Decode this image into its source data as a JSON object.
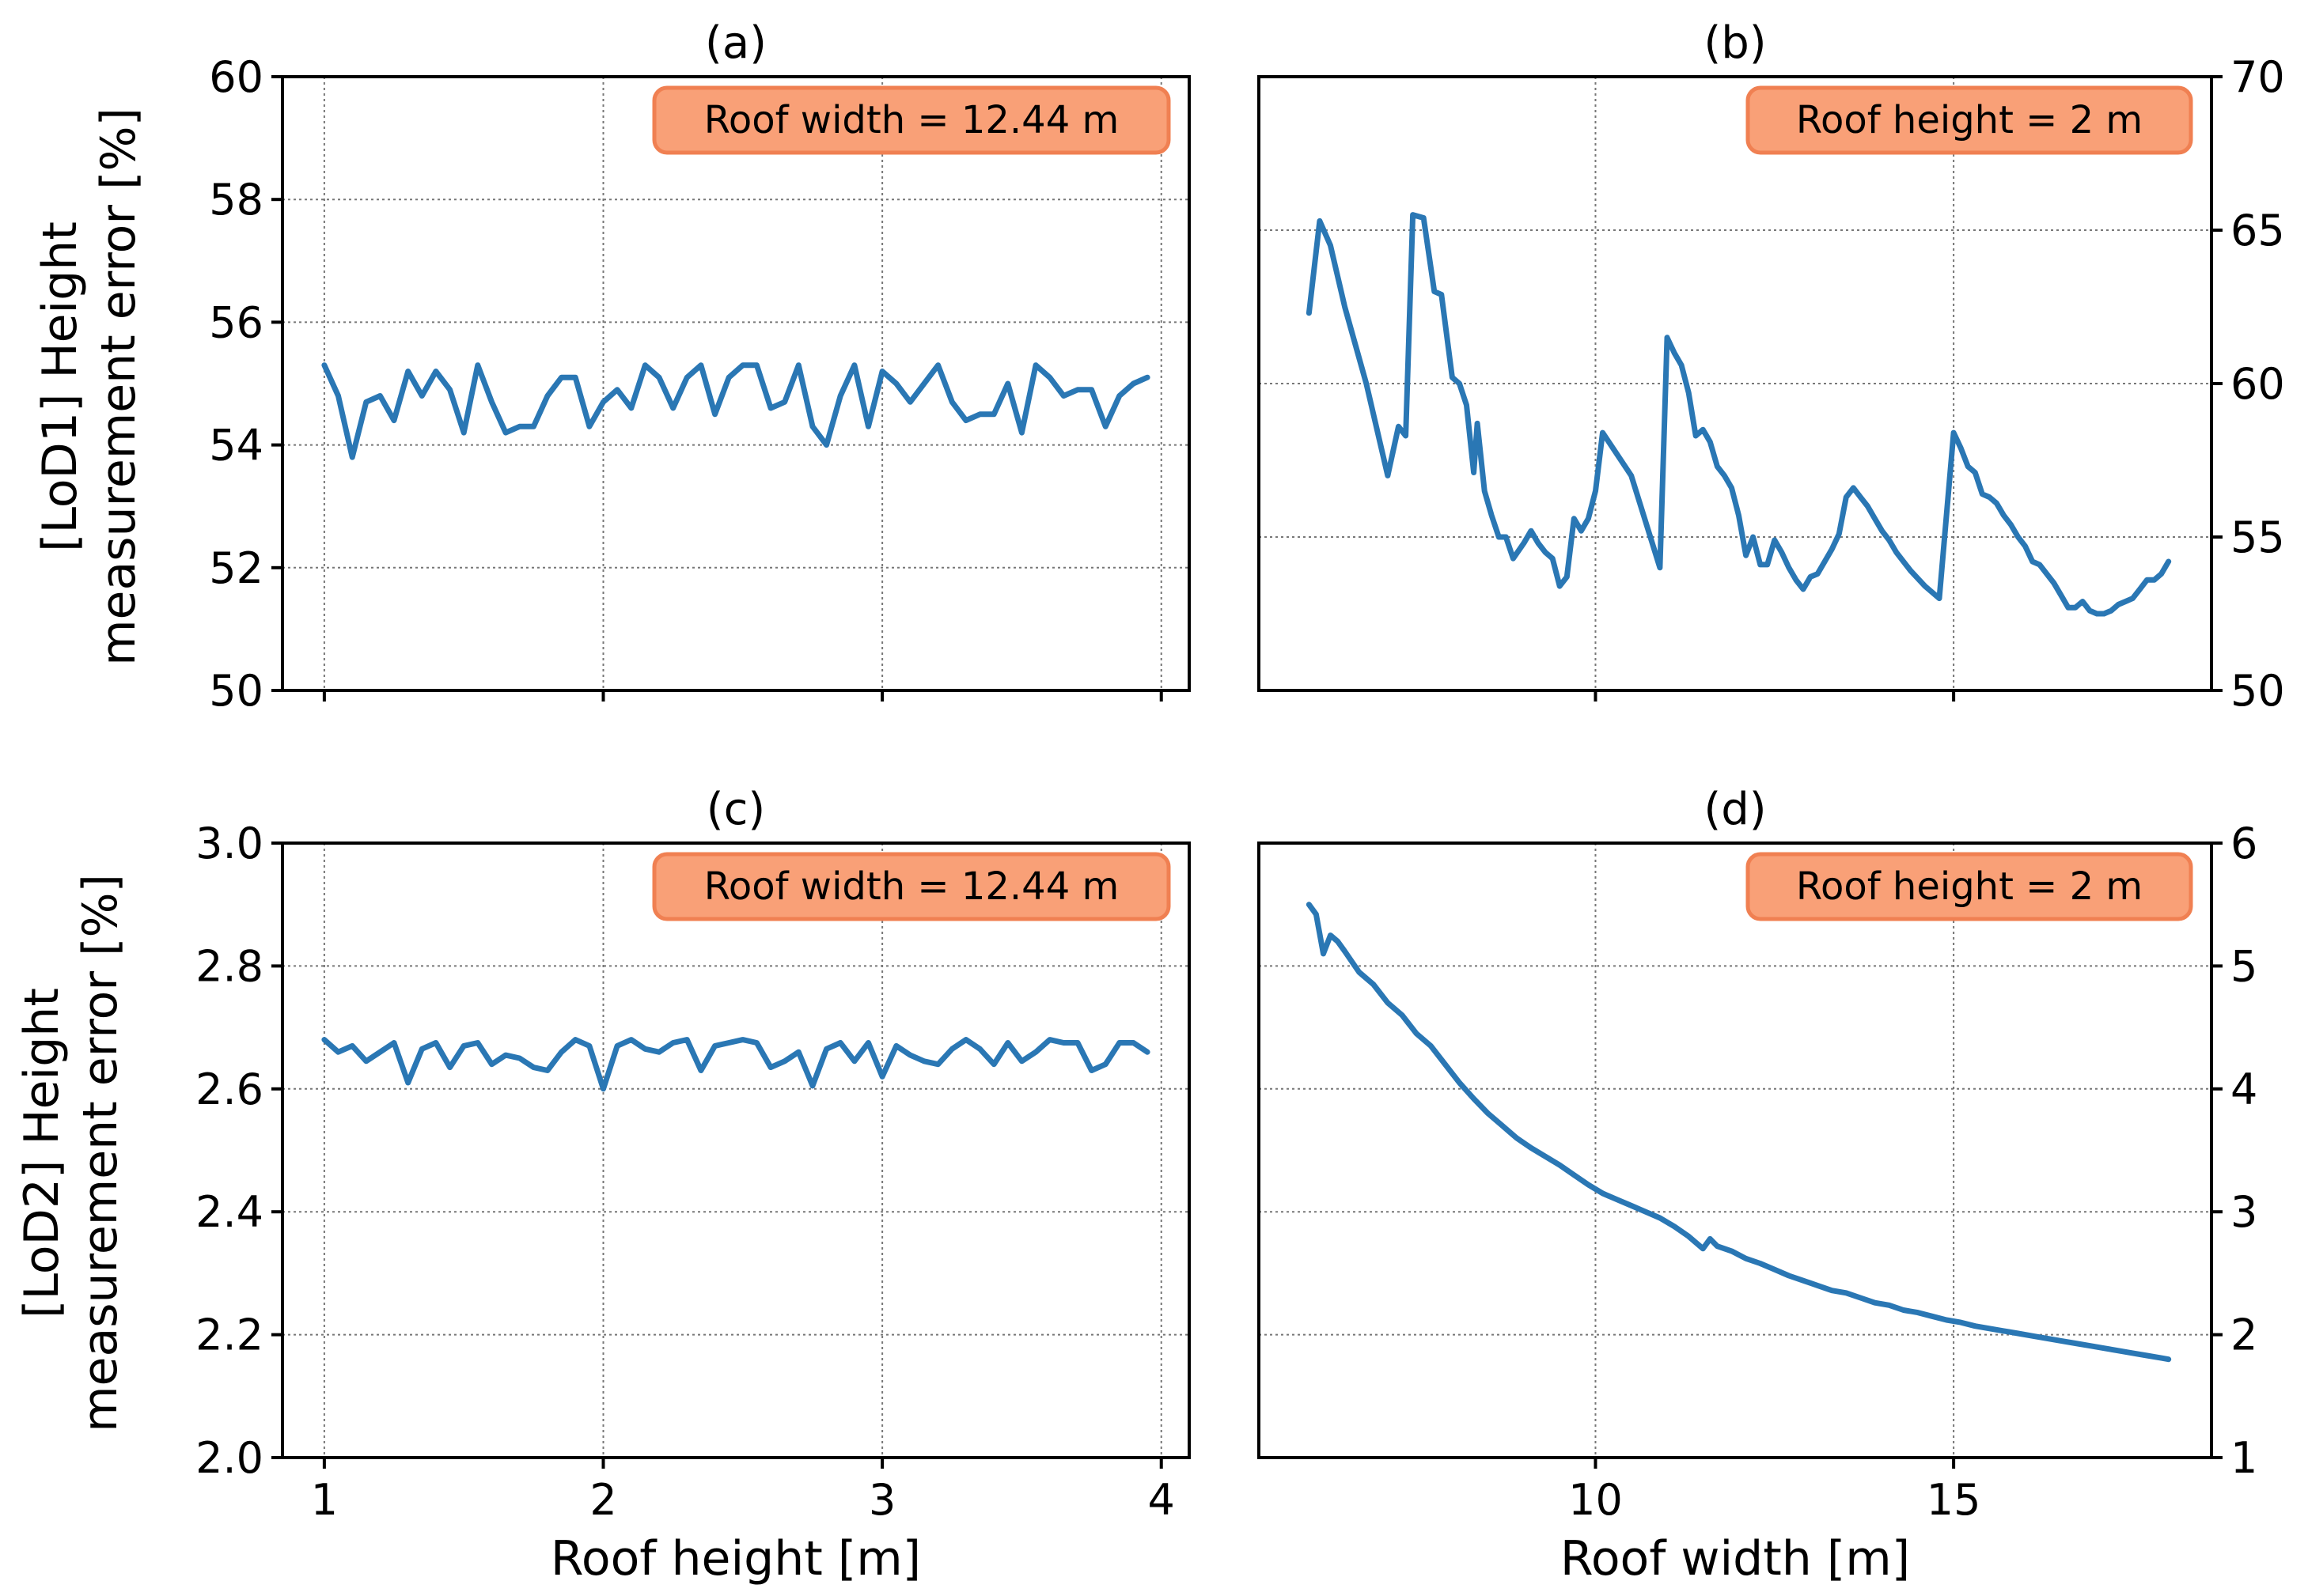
{
  "figure": {
    "ylabel_top_line1": "[LoD1] Height",
    "ylabel_top_line2": "measurement error [%]",
    "ylabel_bottom_line1": "[LoD2] Height",
    "ylabel_bottom_line2": "measurement error [%]",
    "xlabel_left": "Roof height [m]",
    "xlabel_right": "Roof width [m]",
    "line_color": "#2a77b4",
    "annotation_fill": "#f9a077",
    "annotation_stroke": "#f08052",
    "grid_color": "#777777"
  },
  "chart_data": [
    {
      "id": "a",
      "type": "line",
      "title": "(a)",
      "xlabel": "",
      "ylabel": "[LoD1] Height measurement error [%]",
      "annotation": "Roof width = 12.44 m",
      "xlim": [
        0.85,
        4.1
      ],
      "ylim": [
        50,
        60
      ],
      "xticks": [
        1,
        2,
        3,
        4
      ],
      "xtick_labels": [],
      "yticks": [
        50,
        52,
        54,
        56,
        58,
        60
      ],
      "ytick_labels": [
        "50",
        "52",
        "54",
        "56",
        "58",
        "60"
      ],
      "ytick_side": "left",
      "x": [
        1.0,
        1.05,
        1.1,
        1.15,
        1.2,
        1.25,
        1.3,
        1.35,
        1.4,
        1.45,
        1.5,
        1.55,
        1.6,
        1.65,
        1.7,
        1.75,
        1.8,
        1.85,
        1.9,
        1.95,
        2.0,
        2.05,
        2.1,
        2.15,
        2.2,
        2.25,
        2.3,
        2.35,
        2.4,
        2.45,
        2.5,
        2.55,
        2.6,
        2.65,
        2.7,
        2.75,
        2.8,
        2.85,
        2.9,
        2.95,
        3.0,
        3.05,
        3.1,
        3.15,
        3.2,
        3.25,
        3.3,
        3.35,
        3.4,
        3.45,
        3.5,
        3.55,
        3.6,
        3.65,
        3.7,
        3.75,
        3.8,
        3.85,
        3.9,
        3.95
      ],
      "values": [
        55.3,
        54.8,
        53.8,
        54.7,
        54.8,
        54.4,
        55.2,
        54.8,
        55.2,
        54.9,
        54.2,
        55.3,
        54.7,
        54.2,
        54.3,
        54.3,
        54.8,
        55.1,
        55.1,
        54.3,
        54.7,
        54.9,
        54.6,
        55.3,
        55.1,
        54.6,
        55.1,
        55.3,
        54.5,
        55.1,
        55.3,
        55.3,
        54.6,
        54.7,
        55.3,
        54.3,
        54.0,
        54.8,
        55.3,
        54.3,
        55.2,
        55.0,
        54.7,
        55.0,
        55.3,
        54.7,
        54.4,
        54.5,
        54.5,
        55.0,
        54.2,
        55.3,
        55.1,
        54.8,
        54.9,
        54.9,
        54.3,
        54.8,
        55.0,
        55.1
      ]
    },
    {
      "id": "b",
      "type": "line",
      "title": "(b)",
      "xlabel": "",
      "ylabel": "",
      "annotation": "Roof height = 2 m",
      "xlim": [
        5.3,
        18.6
      ],
      "ylim": [
        50,
        70
      ],
      "xticks": [
        10,
        15
      ],
      "xtick_labels": [],
      "yticks": [
        50,
        55,
        60,
        65,
        70
      ],
      "ytick_labels": [
        "50",
        "55",
        "60",
        "65",
        "70"
      ],
      "ytick_side": "right",
      "x": [
        6.0,
        6.15,
        6.3,
        6.5,
        6.8,
        7.1,
        7.25,
        7.35,
        7.45,
        7.6,
        7.75,
        7.85,
        8.0,
        8.1,
        8.2,
        8.3,
        8.35,
        8.45,
        8.55,
        8.65,
        8.75,
        8.85,
        9.0,
        9.1,
        9.2,
        9.3,
        9.4,
        9.5,
        9.6,
        9.7,
        9.8,
        9.9,
        10.0,
        10.1,
        10.5,
        10.9,
        11.0,
        11.1,
        11.2,
        11.3,
        11.4,
        11.5,
        11.6,
        11.7,
        11.8,
        11.9,
        12.0,
        12.1,
        12.2,
        12.3,
        12.4,
        12.5,
        12.6,
        12.7,
        12.8,
        12.9,
        13.0,
        13.1,
        13.2,
        13.3,
        13.4,
        13.5,
        13.6,
        13.7,
        13.8,
        13.9,
        14.0,
        14.1,
        14.2,
        14.4,
        14.6,
        14.8,
        15.0,
        15.1,
        15.2,
        15.3,
        15.4,
        15.5,
        15.6,
        15.7,
        15.8,
        15.9,
        16.0,
        16.1,
        16.2,
        16.3,
        16.4,
        16.5,
        16.6,
        16.7,
        16.8,
        16.9,
        17.0,
        17.1,
        17.2,
        17.3,
        17.4,
        17.5,
        17.6,
        17.7,
        17.8,
        17.9,
        18.0
      ],
      "values": [
        62.3,
        65.3,
        64.5,
        62.5,
        60.0,
        57.0,
        58.6,
        58.3,
        65.5,
        65.4,
        63.0,
        62.9,
        60.2,
        60.0,
        59.3,
        57.1,
        58.7,
        56.5,
        55.7,
        55.0,
        55.0,
        54.3,
        54.8,
        55.2,
        54.8,
        54.5,
        54.3,
        53.4,
        53.7,
        55.6,
        55.2,
        55.6,
        56.5,
        58.4,
        57.0,
        54.0,
        61.5,
        61.0,
        60.6,
        59.7,
        58.3,
        58.5,
        58.1,
        57.3,
        57.0,
        56.6,
        55.7,
        54.4,
        55.0,
        54.1,
        54.1,
        54.9,
        54.5,
        54.0,
        53.6,
        53.3,
        53.7,
        53.8,
        54.2,
        54.6,
        55.1,
        56.3,
        56.6,
        56.3,
        56.0,
        55.6,
        55.2,
        54.9,
        54.5,
        53.9,
        53.4,
        53.0,
        58.4,
        57.9,
        57.3,
        57.1,
        56.4,
        56.3,
        56.1,
        55.7,
        55.4,
        55.0,
        54.7,
        54.2,
        54.1,
        53.8,
        53.5,
        53.1,
        52.7,
        52.7,
        52.9,
        52.6,
        52.5,
        52.5,
        52.6,
        52.8,
        52.9,
        53.0,
        53.3,
        53.6,
        53.6,
        53.8,
        54.2
      ]
    },
    {
      "id": "c",
      "type": "line",
      "title": "(c)",
      "xlabel": "Roof height [m]",
      "ylabel": "[LoD2] Height measurement error [%]",
      "annotation": "Roof width = 12.44 m",
      "xlim": [
        0.85,
        4.1
      ],
      "ylim": [
        2.0,
        3.0
      ],
      "xticks": [
        1,
        2,
        3,
        4
      ],
      "xtick_labels": [
        "1",
        "2",
        "3",
        "4"
      ],
      "yticks": [
        2.0,
        2.2,
        2.4,
        2.6,
        2.8,
        3.0
      ],
      "ytick_labels": [
        "2.0",
        "2.2",
        "2.4",
        "2.6",
        "2.8",
        "3.0"
      ],
      "ytick_side": "left",
      "x": [
        1.0,
        1.05,
        1.1,
        1.15,
        1.2,
        1.25,
        1.3,
        1.35,
        1.4,
        1.45,
        1.5,
        1.55,
        1.6,
        1.65,
        1.7,
        1.75,
        1.8,
        1.85,
        1.9,
        1.95,
        2.0,
        2.05,
        2.1,
        2.15,
        2.2,
        2.25,
        2.3,
        2.35,
        2.4,
        2.45,
        2.5,
        2.55,
        2.6,
        2.65,
        2.7,
        2.75,
        2.8,
        2.85,
        2.9,
        2.95,
        3.0,
        3.05,
        3.1,
        3.15,
        3.2,
        3.25,
        3.3,
        3.35,
        3.4,
        3.45,
        3.5,
        3.55,
        3.6,
        3.65,
        3.7,
        3.75,
        3.8,
        3.85,
        3.9,
        3.95
      ],
      "values": [
        2.68,
        2.66,
        2.67,
        2.645,
        2.66,
        2.675,
        2.61,
        2.665,
        2.675,
        2.635,
        2.67,
        2.675,
        2.64,
        2.655,
        2.65,
        2.635,
        2.63,
        2.66,
        2.68,
        2.67,
        2.6,
        2.67,
        2.68,
        2.665,
        2.66,
        2.675,
        2.68,
        2.63,
        2.67,
        2.675,
        2.68,
        2.675,
        2.635,
        2.645,
        2.66,
        2.605,
        2.665,
        2.675,
        2.645,
        2.675,
        2.62,
        2.67,
        2.655,
        2.645,
        2.64,
        2.665,
        2.68,
        2.665,
        2.64,
        2.675,
        2.645,
        2.66,
        2.68,
        2.675,
        2.675,
        2.63,
        2.64,
        2.675,
        2.675,
        2.66
      ]
    },
    {
      "id": "d",
      "type": "line",
      "title": "(d)",
      "xlabel": "Roof width [m]",
      "ylabel": "",
      "annotation": "Roof height = 2 m",
      "xlim": [
        5.3,
        18.6
      ],
      "ylim": [
        1,
        6
      ],
      "xticks": [
        10,
        15
      ],
      "xtick_labels": [
        "10",
        "15"
      ],
      "yticks": [
        1,
        2,
        3,
        4,
        5,
        6
      ],
      "ytick_labels": [
        "1",
        "2",
        "3",
        "4",
        "5",
        "6"
      ],
      "ytick_side": "right",
      "x": [
        6.0,
        6.1,
        6.2,
        6.3,
        6.4,
        6.5,
        6.7,
        6.9,
        7.1,
        7.3,
        7.5,
        7.7,
        7.9,
        8.1,
        8.3,
        8.5,
        8.7,
        8.9,
        9.1,
        9.3,
        9.5,
        9.7,
        9.9,
        10.1,
        10.3,
        10.5,
        10.7,
        10.9,
        11.1,
        11.3,
        11.5,
        11.6,
        11.7,
        11.9,
        12.1,
        12.3,
        12.5,
        12.7,
        12.9,
        13.1,
        13.3,
        13.5,
        13.7,
        13.9,
        14.1,
        14.3,
        14.5,
        14.7,
        14.9,
        15.1,
        15.3,
        15.5,
        15.7,
        15.9,
        16.1,
        16.3,
        16.5,
        16.7,
        16.9,
        17.1,
        17.3,
        17.5,
        17.7,
        17.9,
        18.0
      ],
      "values": [
        5.5,
        5.42,
        5.1,
        5.25,
        5.2,
        5.12,
        4.95,
        4.85,
        4.7,
        4.6,
        4.45,
        4.35,
        4.2,
        4.05,
        3.92,
        3.8,
        3.7,
        3.6,
        3.52,
        3.45,
        3.38,
        3.3,
        3.22,
        3.15,
        3.1,
        3.05,
        3.0,
        2.95,
        2.88,
        2.8,
        2.7,
        2.78,
        2.72,
        2.68,
        2.62,
        2.58,
        2.53,
        2.48,
        2.44,
        2.4,
        2.36,
        2.34,
        2.3,
        2.26,
        2.24,
        2.2,
        2.18,
        2.15,
        2.12,
        2.1,
        2.07,
        2.05,
        2.03,
        2.01,
        1.99,
        1.97,
        1.95,
        1.93,
        1.91,
        1.89,
        1.87,
        1.85,
        1.83,
        1.81,
        1.8
      ]
    }
  ]
}
